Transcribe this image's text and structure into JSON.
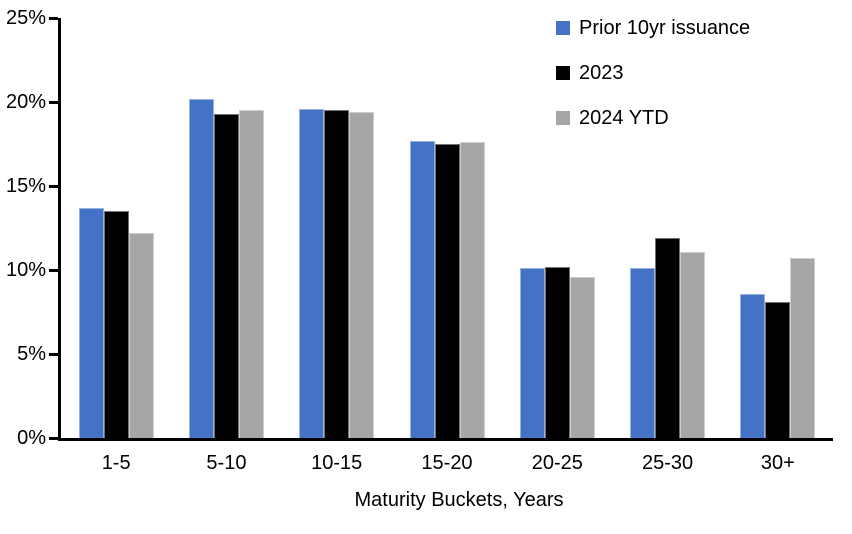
{
  "chart_data": {
    "type": "bar",
    "title": "",
    "xlabel": "Maturity Buckets, Years",
    "ylabel": "",
    "ylim": [
      0,
      25
    ],
    "y_tick_step": 5,
    "y_tick_suffix": "%",
    "grid": false,
    "legend_position": "top-right",
    "categories": [
      "1-5",
      "5-10",
      "10-15",
      "15-20",
      "20-25",
      "25-30",
      "30+"
    ],
    "series": [
      {
        "name": "Prior 10yr issuance",
        "color": "#4472C4",
        "values": [
          13.7,
          20.2,
          19.6,
          17.7,
          10.1,
          10.1,
          8.6
        ]
      },
      {
        "name": "2023",
        "color": "#000000",
        "values": [
          13.5,
          19.3,
          19.5,
          17.5,
          10.2,
          11.9,
          8.1
        ]
      },
      {
        "name": "2024 YTD",
        "color": "#A6A6A6",
        "values": [
          12.2,
          19.5,
          19.4,
          17.6,
          9.6,
          11.1,
          10.7
        ]
      }
    ]
  },
  "colors": {
    "axis": "#000000",
    "text": "#000000",
    "background": "#FFFFFF"
  }
}
